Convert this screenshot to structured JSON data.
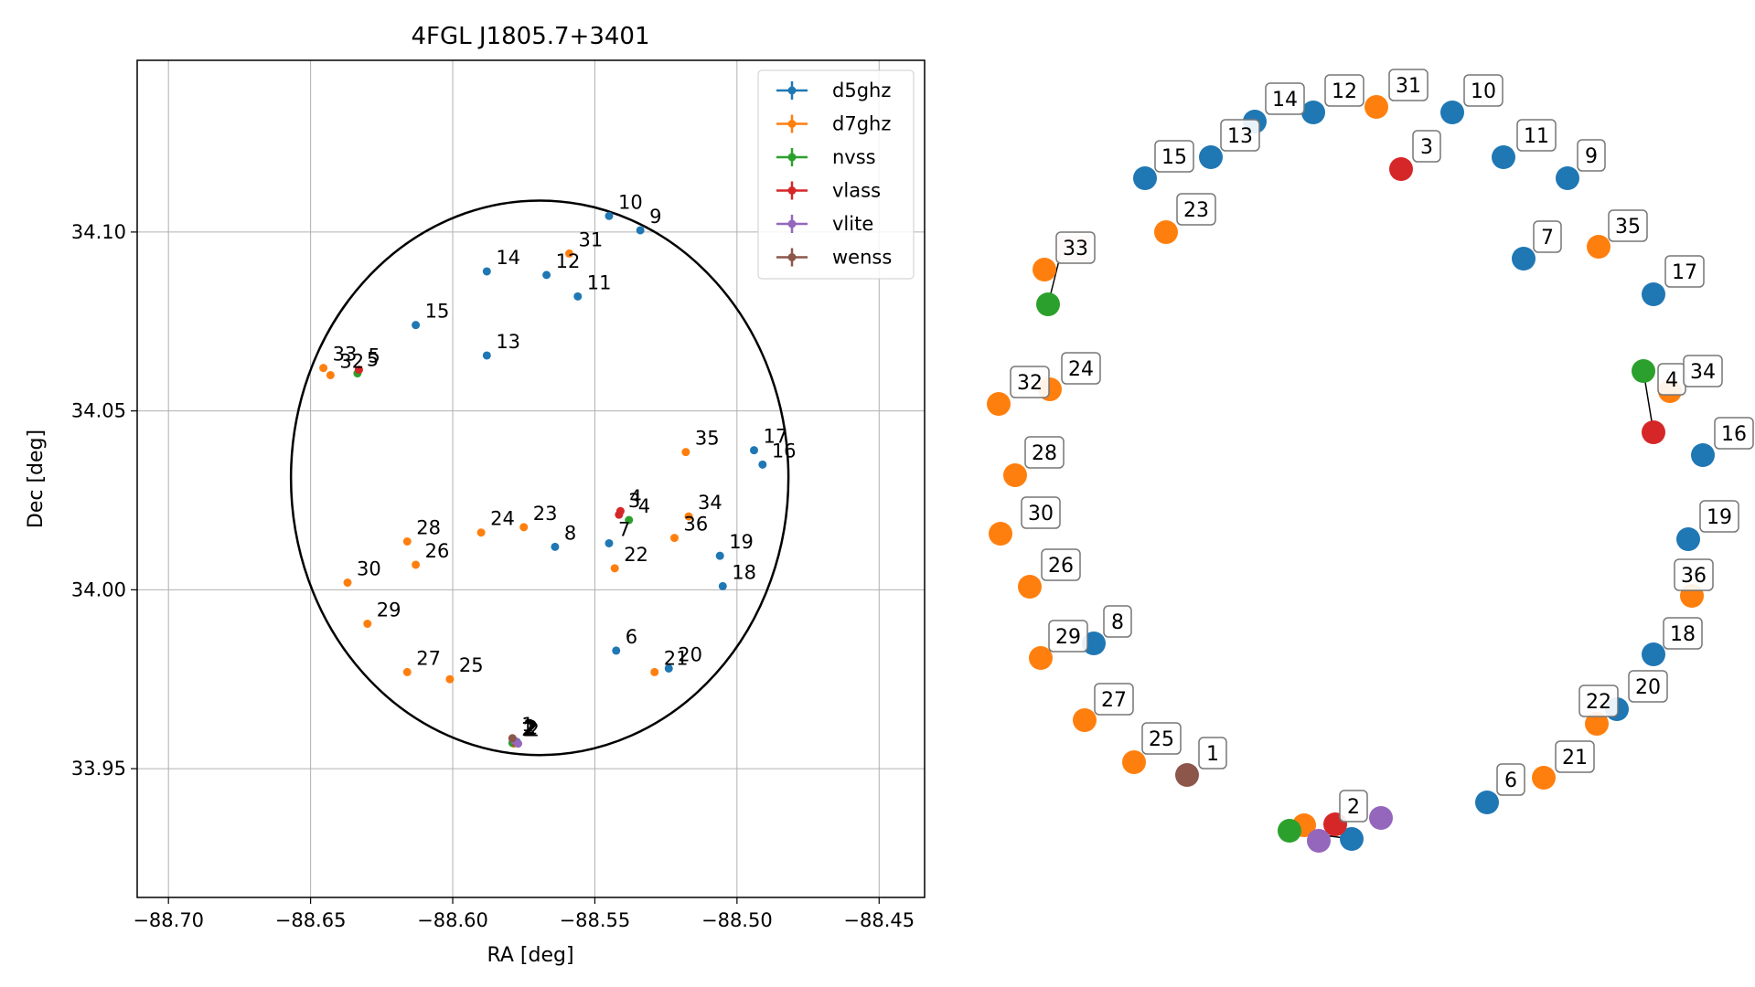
{
  "chart_data": [
    {
      "type": "scatter",
      "title": "4FGL J1805.7+3401",
      "xlabel": "RA [deg]",
      "ylabel": "Dec [deg]",
      "xlim": [
        -88.711,
        -88.434
      ],
      "ylim": [
        33.914,
        34.148
      ],
      "xticks": [
        -88.7,
        -88.65,
        -88.6,
        -88.55,
        -88.5,
        -88.45
      ],
      "xtick_labels": [
        "−88.70",
        "−88.65",
        "−88.60",
        "−88.55",
        "−88.50",
        "−88.45"
      ],
      "yticks": [
        33.95,
        34.0,
        34.05,
        34.1
      ],
      "ytick_labels": [
        "33.95",
        "34.00",
        "34.05",
        "34.10"
      ],
      "grid": true,
      "legend_position": "top-right",
      "ellipse": {
        "center_x": -88.5694,
        "center_y": 34.0313,
        "semi_axis_x": 0.0875,
        "semi_axis_y": 0.0775,
        "color": "#000000"
      },
      "series": [
        {
          "name": "d5ghz",
          "color": "#1f77b4",
          "points": [
            {
              "label": "2",
              "x": -88.5775,
              "y": 33.9575
            },
            {
              "label": "6",
              "x": -88.5425,
              "y": 33.983
            },
            {
              "label": "7",
              "x": -88.545,
              "y": 34.013
            },
            {
              "label": "8",
              "x": -88.564,
              "y": 34.012
            },
            {
              "label": "9",
              "x": -88.534,
              "y": 34.1005
            },
            {
              "label": "10",
              "x": -88.545,
              "y": 34.1045
            },
            {
              "label": "11",
              "x": -88.556,
              "y": 34.082
            },
            {
              "label": "12",
              "x": -88.567,
              "y": 34.088
            },
            {
              "label": "13",
              "x": -88.588,
              "y": 34.0655
            },
            {
              "label": "14",
              "x": -88.588,
              "y": 34.089
            },
            {
              "label": "15",
              "x": -88.613,
              "y": 34.074
            },
            {
              "label": "16",
              "x": -88.491,
              "y": 34.035
            },
            {
              "label": "17",
              "x": -88.494,
              "y": 34.039
            },
            {
              "label": "18",
              "x": -88.505,
              "y": 34.001
            },
            {
              "label": "19",
              "x": -88.506,
              "y": 34.0095
            },
            {
              "label": "20",
              "x": -88.524,
              "y": 33.978
            }
          ]
        },
        {
          "name": "d7ghz",
          "color": "#ff7f0e",
          "points": [
            {
              "label": "2",
              "x": -88.5785,
              "y": 33.957
            },
            {
              "label": "21",
              "x": -88.529,
              "y": 33.977
            },
            {
              "label": "22",
              "x": -88.543,
              "y": 34.006
            },
            {
              "label": "23",
              "x": -88.575,
              "y": 34.0175
            },
            {
              "label": "24",
              "x": -88.59,
              "y": 34.016
            },
            {
              "label": "25",
              "x": -88.601,
              "y": 33.975
            },
            {
              "label": "26",
              "x": -88.613,
              "y": 34.007
            },
            {
              "label": "27",
              "x": -88.616,
              "y": 33.977
            },
            {
              "label": "28",
              "x": -88.616,
              "y": 34.0135
            },
            {
              "label": "29",
              "x": -88.63,
              "y": 33.9905
            },
            {
              "label": "30",
              "x": -88.637,
              "y": 34.002
            },
            {
              "label": "31",
              "x": -88.559,
              "y": 34.094
            },
            {
              "label": "32",
              "x": -88.643,
              "y": 34.06
            },
            {
              "label": "33",
              "x": -88.6455,
              "y": 34.062
            },
            {
              "label": "34",
              "x": -88.517,
              "y": 34.0205
            },
            {
              "label": "35",
              "x": -88.518,
              "y": 34.0385
            },
            {
              "label": "36",
              "x": -88.522,
              "y": 34.0145
            }
          ]
        },
        {
          "name": "nvss",
          "color": "#2ca02c",
          "points": [
            {
              "label": "2",
              "x": -88.579,
              "y": 33.9572
            },
            {
              "label": "4",
              "x": -88.538,
              "y": 34.0195
            },
            {
              "label": "5",
              "x": -88.6335,
              "y": 34.0605
            }
          ]
        },
        {
          "name": "vlass",
          "color": "#d62728",
          "points": [
            {
              "label": "2",
              "x": -88.578,
              "y": 33.9574
            },
            {
              "label": "3",
              "x": -88.5415,
              "y": 34.021
            },
            {
              "label": "4",
              "x": -88.541,
              "y": 34.022
            },
            {
              "label": "5",
              "x": -88.633,
              "y": 34.0615
            }
          ]
        },
        {
          "name": "vlite",
          "color": "#9467bd",
          "points": [
            {
              "label": "2",
              "x": -88.577,
              "y": 33.957
            },
            {
              "label": "2",
              "x": -88.5782,
              "y": 33.9578
            }
          ]
        },
        {
          "name": "wenss",
          "color": "#8c564b",
          "points": [
            {
              "label": "1",
              "x": -88.579,
              "y": 33.9585
            }
          ]
        }
      ]
    },
    {
      "type": "scatter",
      "title": "",
      "grid": false,
      "annotations": [
        "1",
        "2",
        "3",
        "4",
        "6",
        "7",
        "8",
        "9",
        "10",
        "11",
        "12",
        "13",
        "14",
        "15",
        "16",
        "17",
        "18",
        "19",
        "20",
        "21",
        "22",
        "23",
        "24",
        "25",
        "26",
        "27",
        "28",
        "29",
        "30",
        "31",
        "32",
        "33",
        "34",
        "35",
        "36"
      ]
    }
  ],
  "colors": {
    "d5ghz": "#1f77b4",
    "d7ghz": "#ff7f0e",
    "nvss": "#2ca02c",
    "vlass": "#d62728",
    "vlite": "#9467bd",
    "wenss": "#8c564b"
  }
}
